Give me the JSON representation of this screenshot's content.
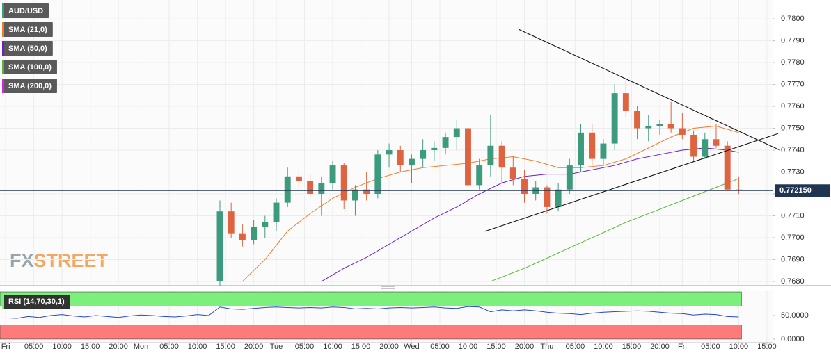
{
  "chart_data": {
    "type": "candlestick",
    "series_name": "AUD/USD",
    "series_color": "#3d9b7d",
    "up_color": "#3d9b7d",
    "down_color": "#e0633f",
    "x": [
      38,
      40,
      42,
      44,
      46,
      48,
      50,
      52,
      54,
      56,
      58,
      60,
      62,
      64,
      66,
      68,
      70,
      72,
      74,
      76,
      78,
      80,
      82,
      84,
      86,
      88,
      90,
      92,
      94,
      96,
      98,
      100,
      102,
      104,
      106,
      108,
      110,
      112,
      114,
      116,
      118,
      120,
      122,
      124,
      126,
      128,
      130
    ],
    "open": [
      0.768,
      0.7712,
      0.7702,
      0.7699,
      0.7705,
      0.7707,
      0.7716,
      0.7728,
      0.7726,
      0.772,
      0.7725,
      0.7733,
      0.7717,
      0.7722,
      0.772,
      0.7738,
      0.774,
      0.7733,
      0.7736,
      0.774,
      0.7741,
      0.7746,
      0.775,
      0.7724,
      0.7733,
      0.7742,
      0.7732,
      0.7727,
      0.772,
      0.7723,
      0.7714,
      0.7722,
      0.7733,
      0.7748,
      0.7736,
      0.7743,
      0.7766,
      0.7758,
      0.775,
      0.7751,
      0.7752,
      0.775,
      0.7747,
      0.7737,
      0.7745,
      0.7742,
      0.7722
    ],
    "high": [
      0.7717,
      0.7716,
      0.7706,
      0.7708,
      0.771,
      0.7718,
      0.7732,
      0.7731,
      0.7729,
      0.7728,
      0.7735,
      0.7734,
      0.7724,
      0.773,
      0.774,
      0.7743,
      0.7742,
      0.7738,
      0.7745,
      0.7744,
      0.7748,
      0.7754,
      0.7752,
      0.7736,
      0.7756,
      0.7744,
      0.7737,
      0.7731,
      0.7726,
      0.7724,
      0.7725,
      0.7736,
      0.7752,
      0.7752,
      0.7745,
      0.777,
      0.7772,
      0.776,
      0.7756,
      0.7754,
      0.7762,
      0.7757,
      0.7749,
      0.7748,
      0.7752,
      0.7744,
      0.7728
    ],
    "low": [
      0.7678,
      0.77,
      0.7696,
      0.7697,
      0.77,
      0.7703,
      0.7714,
      0.7722,
      0.7718,
      0.771,
      0.7722,
      0.7713,
      0.771,
      0.7717,
      0.7718,
      0.7732,
      0.773,
      0.7725,
      0.7732,
      0.7735,
      0.7738,
      0.774,
      0.772,
      0.7722,
      0.7728,
      0.7725,
      0.7724,
      0.7716,
      0.7717,
      0.7711,
      0.7712,
      0.772,
      0.773,
      0.7733,
      0.7733,
      0.774,
      0.7755,
      0.7745,
      0.7744,
      0.7747,
      0.7748,
      0.7745,
      0.7735,
      0.7736,
      0.7741,
      0.7722,
      0.772
    ],
    "close": [
      0.7712,
      0.7702,
      0.7699,
      0.7705,
      0.7707,
      0.7716,
      0.7728,
      0.7726,
      0.772,
      0.7725,
      0.7733,
      0.7717,
      0.7722,
      0.772,
      0.7738,
      0.774,
      0.7733,
      0.7736,
      0.774,
      0.7741,
      0.7746,
      0.775,
      0.7724,
      0.7733,
      0.7742,
      0.7732,
      0.7727,
      0.772,
      0.7723,
      0.7714,
      0.7722,
      0.7733,
      0.7748,
      0.7736,
      0.7743,
      0.7766,
      0.7758,
      0.775,
      0.7751,
      0.7752,
      0.775,
      0.7747,
      0.7737,
      0.7745,
      0.7742,
      0.7722,
      0.77215
    ],
    "overlays": [
      {
        "name": "SMA (21,0)",
        "color": "#f07d28",
        "x": [
          42,
          46,
          50,
          54,
          58,
          62,
          66,
          70,
          74,
          78,
          82,
          86,
          90,
          94,
          98,
          102,
          106,
          110,
          114,
          118,
          122,
          126,
          130
        ],
        "values": [
          0.768,
          0.769,
          0.7703,
          0.7711,
          0.7718,
          0.7723,
          0.7727,
          0.773,
          0.7732,
          0.7733,
          0.7734,
          0.7736,
          0.7737,
          0.7735,
          0.7732,
          0.7732,
          0.7733,
          0.7736,
          0.7741,
          0.7746,
          0.775,
          0.7751,
          0.7748
        ]
      },
      {
        "name": "SMA (50,0)",
        "color": "#6a1fd0",
        "x": [
          56,
          60,
          64,
          68,
          72,
          76,
          80,
          84,
          88,
          92,
          96,
          100,
          104,
          108,
          112,
          116,
          120,
          124,
          128,
          130
        ],
        "values": [
          0.768,
          0.7686,
          0.7691,
          0.7697,
          0.7703,
          0.7709,
          0.7714,
          0.772,
          0.7725,
          0.7728,
          0.7729,
          0.7729,
          0.7731,
          0.7733,
          0.7736,
          0.7738,
          0.774,
          0.7741,
          0.774,
          0.7739
        ]
      },
      {
        "name": "SMA (100,0)",
        "color": "#52b830",
        "x": [
          86,
          92,
          98,
          104,
          110,
          116,
          122,
          128,
          130
        ],
        "values": [
          0.768,
          0.7686,
          0.7693,
          0.77,
          0.7707,
          0.7713,
          0.7719,
          0.7725,
          0.7727
        ]
      },
      {
        "name": "SMA (200,0)",
        "color": "#e020e0"
      }
    ],
    "trendlines": [
      {
        "x": [
          91,
          137.3
        ],
        "values": [
          0.77952,
          0.774
        ]
      },
      {
        "x": [
          85,
          137
        ],
        "values": [
          0.77029,
          0.77476
        ]
      }
    ],
    "trendline_color": "#111111",
    "last_price": {
      "value": 0.77215,
      "label": "0.772150"
    },
    "last_price_color": "#1f3552",
    "xlim": [
      -1,
      136
    ],
    "xticks": [
      {
        "value": 0,
        "label": "Fri"
      },
      {
        "value": 5,
        "label": "05:00"
      },
      {
        "value": 10,
        "label": "10:00"
      },
      {
        "value": 15,
        "label": "15:00"
      },
      {
        "value": 20,
        "label": "20:00"
      },
      {
        "value": 24,
        "label": "Mon"
      },
      {
        "value": 29,
        "label": "05:00"
      },
      {
        "value": 34,
        "label": "10:00"
      },
      {
        "value": 39,
        "label": "15:00"
      },
      {
        "value": 44,
        "label": "20:00"
      },
      {
        "value": 48,
        "label": "Tue"
      },
      {
        "value": 53,
        "label": "05:00"
      },
      {
        "value": 58,
        "label": "10:00"
      },
      {
        "value": 63,
        "label": "15:00"
      },
      {
        "value": 68,
        "label": "20:00"
      },
      {
        "value": 72,
        "label": "Wed"
      },
      {
        "value": 77,
        "label": "05:00"
      },
      {
        "value": 82,
        "label": "10:00"
      },
      {
        "value": 87,
        "label": "15:00"
      },
      {
        "value": 92,
        "label": "20:00"
      },
      {
        "value": 96,
        "label": "Thu"
      },
      {
        "value": 101,
        "label": "05:00"
      },
      {
        "value": 106,
        "label": "10:00"
      },
      {
        "value": 111,
        "label": "15:00"
      },
      {
        "value": 116,
        "label": "20:00"
      },
      {
        "value": 120,
        "label": "Fri"
      },
      {
        "value": 125,
        "label": "05:00"
      },
      {
        "value": 130,
        "label": "10:00"
      },
      {
        "value": 135,
        "label": "15:00"
      }
    ],
    "ylim": [
      0.76784,
      0.78086
    ],
    "yticks": [
      {
        "value": 0.768,
        "label": "0.7680"
      },
      {
        "value": 0.769,
        "label": "0.7690"
      },
      {
        "value": 0.77,
        "label": "0.7700"
      },
      {
        "value": 0.771,
        "label": "0.7710"
      },
      {
        "value": 0.772,
        "label": "0.7720"
      },
      {
        "value": 0.773,
        "label": "0.7730"
      },
      {
        "value": 0.774,
        "label": "0.7740"
      },
      {
        "value": 0.775,
        "label": "0.7750"
      },
      {
        "value": 0.776,
        "label": "0.7760"
      },
      {
        "value": 0.777,
        "label": "0.7770"
      },
      {
        "value": 0.778,
        "label": "0.7780"
      },
      {
        "value": 0.779,
        "label": "0.7790"
      },
      {
        "value": 0.78,
        "label": "0.7800"
      }
    ],
    "grid": true,
    "indicator": {
      "name": "RSI (14,70,30,1)",
      "color": "#2848c8",
      "x": [
        0,
        2,
        4,
        6,
        8,
        10,
        12,
        14,
        16,
        18,
        20,
        22,
        24,
        26,
        28,
        30,
        32,
        34,
        36,
        38,
        40,
        42,
        44,
        46,
        48,
        50,
        52,
        54,
        56,
        58,
        60,
        62,
        64,
        66,
        68,
        70,
        72,
        74,
        76,
        78,
        80,
        82,
        84,
        86,
        88,
        90,
        92,
        94,
        96,
        98,
        100,
        102,
        104,
        106,
        108,
        110,
        112,
        114,
        116,
        118,
        120,
        122,
        124,
        126,
        128,
        130
      ],
      "values": [
        45,
        44,
        48,
        46,
        50,
        52,
        49,
        47,
        50,
        48,
        46,
        49,
        51,
        50,
        48,
        47,
        49,
        52,
        50,
        68,
        64,
        63,
        65,
        67,
        68,
        67,
        66,
        67,
        66,
        68,
        67,
        64,
        65,
        64,
        66,
        67,
        66,
        67,
        68,
        66,
        65,
        69,
        68,
        58,
        62,
        60,
        62,
        60,
        57,
        55,
        54,
        52,
        55,
        57,
        58,
        59,
        60,
        59,
        57,
        55,
        54,
        51,
        53,
        52,
        48,
        47
      ],
      "ylim": [
        -6,
        103
      ],
      "yticks": [
        {
          "value": 50,
          "label": "50.0000"
        },
        {
          "value": 0,
          "label": "0.0000"
        }
      ],
      "bands": [
        {
          "range": [
            70,
            100
          ],
          "color": "#7cf07c"
        },
        {
          "range": [
            0,
            30
          ],
          "color": "#ff7b7b"
        }
      ]
    },
    "logo": [
      "FX",
      "STREET"
    ]
  }
}
